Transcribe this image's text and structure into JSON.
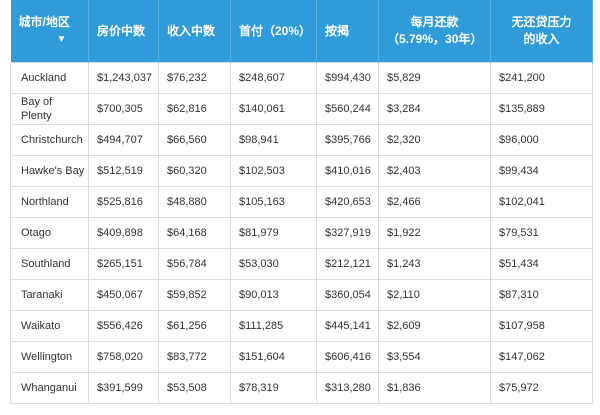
{
  "table": {
    "columns": [
      [
        "城市/地区"
      ],
      [
        "房价中数"
      ],
      [
        "收入中数"
      ],
      [
        "首付（20%）"
      ],
      [
        "按揭"
      ],
      [
        "每月还款",
        "（5.79%，30年）"
      ],
      [
        "无还贷压力",
        "的收入"
      ]
    ],
    "rows": [
      [
        "Auckland",
        "$1,243,037",
        "$76,232",
        "$248,607",
        "$994,430",
        "$5,829",
        "$241,200"
      ],
      [
        "Bay of Plenty",
        "$700,305",
        "$62,816",
        "$140,061",
        "$560,244",
        "$3,284",
        "$135,889"
      ],
      [
        "Christchurch",
        "$494,707",
        "$66,560",
        "$98,941",
        "$395,766",
        "$2,320",
        "$96,000"
      ],
      [
        "Hawke's Bay",
        "$512,519",
        "$60,320",
        "$102,503",
        "$410,016",
        "$2,403",
        "$99,434"
      ],
      [
        "Northland",
        "$525,816",
        "$48,880",
        "$105,163",
        "$420,653",
        "$2,466",
        "$102,041"
      ],
      [
        "Otago",
        "$409,898",
        "$64,168",
        "$81,979",
        "$327,919",
        "$1,922",
        "$79,531"
      ],
      [
        "Southland",
        "$265,151",
        "$56,784",
        "$53,030",
        "$212,121",
        "$1,243",
        "$51,434"
      ],
      [
        "Taranaki",
        "$450,067",
        "$59,852",
        "$90,013",
        "$360,054",
        "$2,110",
        "$87,310"
      ],
      [
        "Waikato",
        "$556,426",
        "$61,256",
        "$111,285",
        "$445,141",
        "$2,609",
        "$107,958"
      ],
      [
        "Wellington",
        "$758,020",
        "$83,772",
        "$151,604",
        "$606,416",
        "$3,554",
        "$147,062"
      ],
      [
        "Whanganui",
        "$391,599",
        "$53,508",
        "$78,319",
        "$313,280",
        "$1,836",
        "$75,972"
      ]
    ]
  }
}
